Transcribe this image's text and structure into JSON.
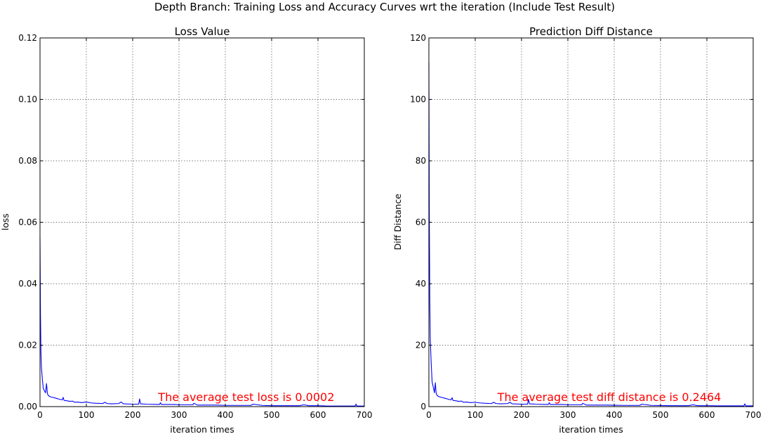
{
  "figure": {
    "suptitle": "Depth Branch: Training Loss and Accuracy Curves wrt the iteration (Include Test Result)"
  },
  "chart_data": [
    {
      "type": "line",
      "title": "Loss Value",
      "xlabel": "iteration times",
      "ylabel": "loss",
      "xlim": [
        0,
        700
      ],
      "ylim": [
        0,
        0.12
      ],
      "grid": true,
      "xticks": [
        0,
        100,
        200,
        300,
        400,
        500,
        600,
        700
      ],
      "yticks": [
        0.0,
        0.02,
        0.04,
        0.06,
        0.08,
        0.1,
        0.12
      ],
      "xtick_labels": [
        "0",
        "100",
        "200",
        "300",
        "400",
        "500",
        "600",
        "700"
      ],
      "ytick_labels": [
        "0.00",
        "0.02",
        "0.04",
        "0.06",
        "0.08",
        "0.10",
        "0.12"
      ],
      "series_color": "#0000ff",
      "annotation": {
        "text": "The average test loss is 0.0002",
        "x": 255,
        "y": 0.0018,
        "color": "#ff0000"
      },
      "series": [
        {
          "x": [
            0,
            1,
            2,
            3,
            5,
            7,
            10,
            12,
            14,
            15,
            16,
            18,
            22,
            28,
            35,
            42,
            48,
            50,
            52,
            58,
            65,
            70,
            75,
            80,
            90,
            100,
            110,
            120,
            135,
            140,
            145,
            155,
            170,
            175,
            180,
            200,
            213,
            215,
            217,
            230,
            258,
            260,
            262,
            290,
            300,
            320,
            330,
            332,
            340,
            360,
            380,
            400,
            420,
            445,
            455,
            460,
            480,
            500,
            520,
            540,
            560,
            570,
            580,
            600,
            620,
            640,
            660,
            680,
            682,
            684,
            690,
            700
          ],
          "y": [
            0.055,
            0.03,
            0.018,
            0.013,
            0.009,
            0.006,
            0.005,
            0.0045,
            0.0075,
            0.006,
            0.0042,
            0.0036,
            0.0032,
            0.003,
            0.0027,
            0.0024,
            0.0022,
            0.003,
            0.002,
            0.0019,
            0.0017,
            0.0018,
            0.0014,
            0.0015,
            0.0013,
            0.0015,
            0.0012,
            0.0011,
            0.001,
            0.0014,
            0.001,
            0.0009,
            0.001,
            0.0015,
            0.0009,
            0.0008,
            0.0008,
            0.0025,
            0.0009,
            0.0008,
            0.0007,
            0.0013,
            0.0007,
            0.0007,
            0.0006,
            0.0006,
            0.0006,
            0.0011,
            0.0005,
            0.0005,
            0.0005,
            0.0004,
            0.0004,
            0.0004,
            0.0004,
            0.0008,
            0.0004,
            0.0003,
            0.0003,
            0.0003,
            0.0003,
            0.0006,
            0.0003,
            0.0003,
            0.0002,
            0.0002,
            0.0002,
            0.0002,
            0.0008,
            0.0002,
            0.0002,
            0.0002
          ]
        }
      ]
    },
    {
      "type": "line",
      "title": "Prediction Diff Distance",
      "xlabel": "iteration times",
      "ylabel": "Diff Distance",
      "xlim": [
        0,
        700
      ],
      "ylim": [
        0,
        120
      ],
      "grid": true,
      "xticks": [
        0,
        100,
        200,
        300,
        400,
        500,
        600,
        700
      ],
      "yticks": [
        0,
        20,
        40,
        60,
        80,
        100,
        120
      ],
      "xtick_labels": [
        "0",
        "100",
        "200",
        "300",
        "400",
        "500",
        "600",
        "700"
      ],
      "ytick_labels": [
        "0",
        "20",
        "40",
        "60",
        "80",
        "100",
        "120"
      ],
      "series_color": "#0000ff",
      "annotation": {
        "text": "The average test diff distance is 0.2464",
        "x": 148,
        "y": 1.8,
        "color": "#ff0000"
      },
      "series": [
        {
          "x": [
            0,
            1,
            2,
            3,
            5,
            7,
            10,
            12,
            14,
            15,
            16,
            18,
            22,
            28,
            35,
            42,
            48,
            50,
            52,
            58,
            65,
            70,
            75,
            80,
            90,
            100,
            110,
            120,
            135,
            140,
            145,
            155,
            170,
            175,
            180,
            200,
            213,
            215,
            217,
            230,
            258,
            260,
            262,
            290,
            300,
            320,
            330,
            332,
            340,
            360,
            380,
            400,
            420,
            445,
            455,
            460,
            480,
            500,
            520,
            540,
            560,
            570,
            580,
            600,
            620,
            640,
            660,
            680,
            682,
            684,
            690,
            700
          ],
          "y": [
            112,
            60,
            34,
            22,
            14,
            8,
            6,
            4.5,
            7.8,
            5.5,
            4.2,
            3.6,
            3.2,
            3.0,
            2.7,
            2.4,
            2.2,
            2.9,
            2.0,
            1.9,
            1.7,
            1.8,
            1.4,
            1.5,
            1.3,
            1.4,
            1.2,
            1.1,
            1.0,
            1.4,
            1.0,
            0.9,
            1.0,
            1.4,
            0.9,
            0.8,
            0.8,
            2.4,
            0.9,
            0.8,
            0.7,
            1.3,
            0.7,
            0.7,
            0.6,
            0.6,
            0.6,
            1.1,
            0.5,
            0.5,
            0.5,
            0.45,
            0.4,
            0.4,
            0.4,
            0.8,
            0.4,
            0.35,
            0.3,
            0.3,
            0.3,
            0.6,
            0.3,
            0.3,
            0.25,
            0.25,
            0.25,
            0.25,
            0.9,
            0.25,
            0.25,
            0.25
          ]
        }
      ]
    }
  ]
}
